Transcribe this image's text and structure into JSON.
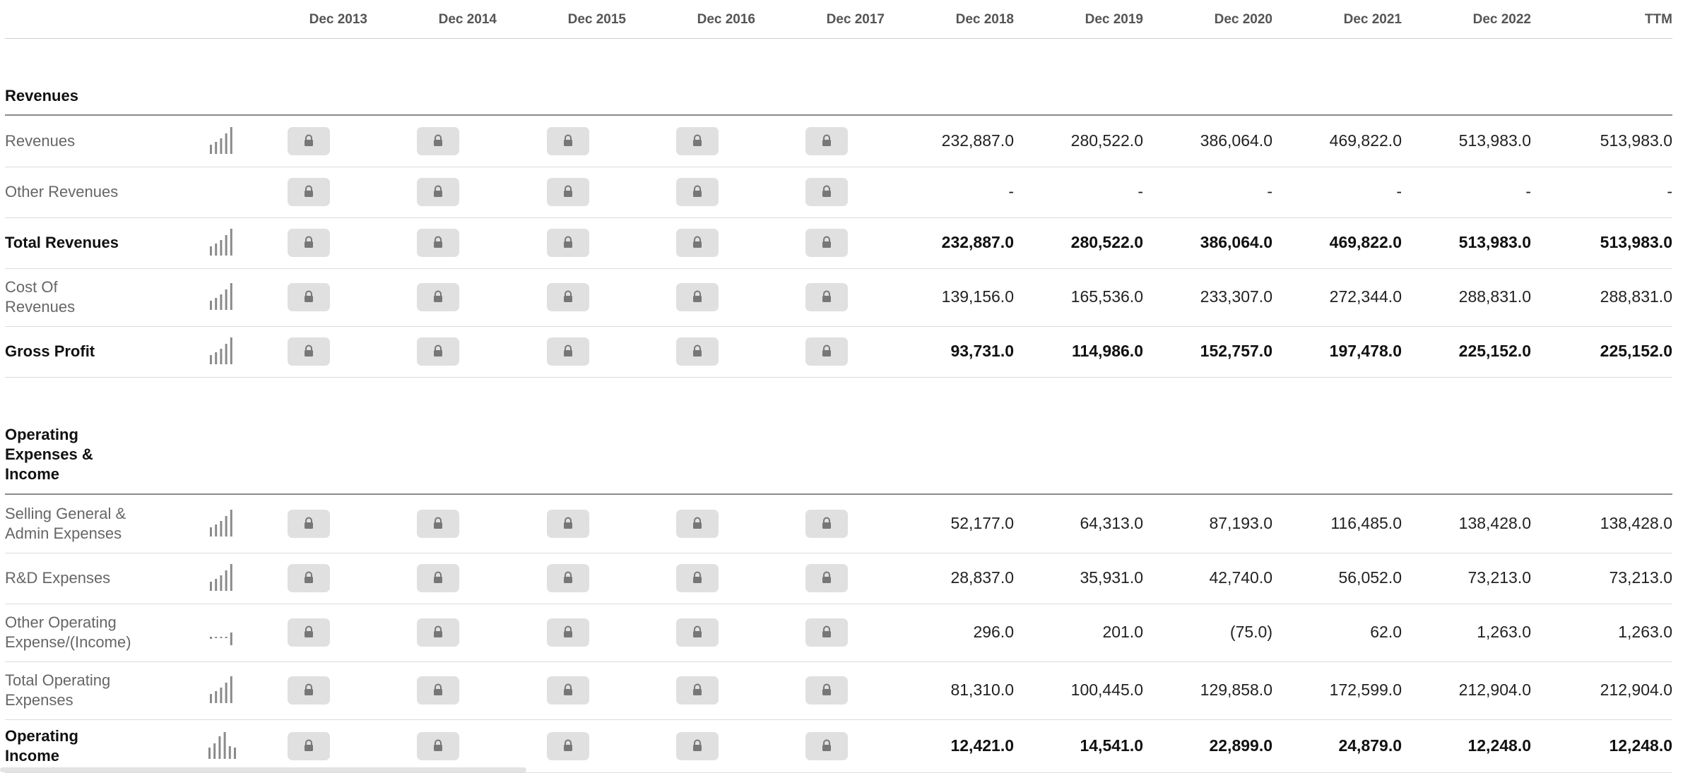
{
  "header": {
    "periods": [
      "Dec 2013",
      "Dec 2014",
      "Dec 2015",
      "Dec 2016",
      "Dec 2017",
      "Dec 2018",
      "Dec 2019",
      "Dec 2020",
      "Dec 2021",
      "Dec 2022",
      "TTM"
    ]
  },
  "sections": {
    "revenues": {
      "title": "Revenues"
    },
    "operating": {
      "title_lines": [
        "Operating",
        "Expenses &",
        "Income"
      ]
    }
  },
  "lock_icon": "lock-icon",
  "rows": [
    {
      "label_lines": [
        "Revenues"
      ],
      "bold": false,
      "spark": "bars",
      "values": [
        "232,887.0",
        "280,522.0",
        "386,064.0",
        "469,822.0",
        "513,983.0",
        "513,983.0"
      ]
    },
    {
      "label_lines": [
        "Other Revenues"
      ],
      "bold": false,
      "spark": "none",
      "values": [
        "-",
        "-",
        "-",
        "-",
        "-",
        "-"
      ]
    },
    {
      "label_lines": [
        "Total Revenues"
      ],
      "bold": true,
      "spark": "bars",
      "values": [
        "232,887.0",
        "280,522.0",
        "386,064.0",
        "469,822.0",
        "513,983.0",
        "513,983.0"
      ]
    },
    {
      "label_lines": [
        "Cost Of",
        "Revenues"
      ],
      "bold": false,
      "spark": "bars",
      "values": [
        "139,156.0",
        "165,536.0",
        "233,307.0",
        "272,344.0",
        "288,831.0",
        "288,831.0"
      ]
    },
    {
      "label_lines": [
        "Gross Profit"
      ],
      "bold": true,
      "spark": "bars",
      "values": [
        "93,731.0",
        "114,986.0",
        "152,757.0",
        "197,478.0",
        "225,152.0",
        "225,152.0"
      ]
    },
    {
      "label_lines": [
        "Selling General &",
        "Admin Expenses"
      ],
      "bold": false,
      "spark": "bars",
      "values": [
        "52,177.0",
        "64,313.0",
        "87,193.0",
        "116,485.0",
        "138,428.0",
        "138,428.0"
      ]
    },
    {
      "label_lines": [
        "R&D Expenses"
      ],
      "bold": false,
      "spark": "bars",
      "values": [
        "28,837.0",
        "35,931.0",
        "42,740.0",
        "56,052.0",
        "73,213.0",
        "73,213.0"
      ]
    },
    {
      "label_lines": [
        "Other Operating",
        "Expense/(Income)"
      ],
      "bold": false,
      "spark": "mixed",
      "values": [
        "296.0",
        "201.0",
        "(75.0)",
        "62.0",
        "1,263.0",
        "1,263.0"
      ]
    },
    {
      "label_lines": [
        "Total Operating",
        "Expenses"
      ],
      "bold": false,
      "spark": "bars",
      "values": [
        "81,310.0",
        "100,445.0",
        "129,858.0",
        "172,599.0",
        "212,904.0",
        "212,904.0"
      ]
    },
    {
      "label_lines": [
        "Operating",
        "Income"
      ],
      "bold": true,
      "spark": "bars-peak",
      "values": [
        "12,421.0",
        "14,541.0",
        "22,899.0",
        "24,879.0",
        "12,248.0",
        "12,248.0"
      ]
    }
  ]
}
